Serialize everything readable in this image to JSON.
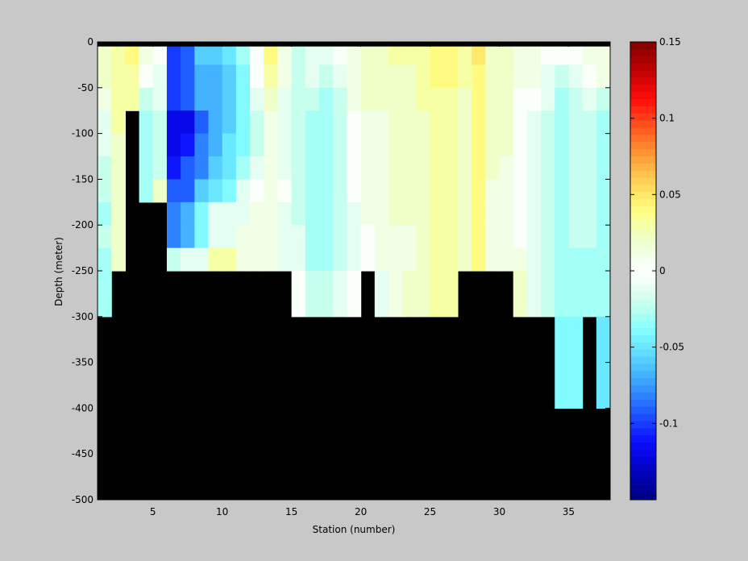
{
  "window": {
    "background": "#c8c8c8"
  },
  "chart_data": {
    "type": "heatmap",
    "title": "",
    "xlabel": "Station (number)",
    "ylabel": "Depth (meter)",
    "xlim": [
      1,
      38
    ],
    "ylim": [
      -500,
      0
    ],
    "xticks": [
      5,
      10,
      15,
      20,
      25,
      30,
      35
    ],
    "yticks": [
      0,
      -50,
      -100,
      -150,
      -200,
      -250,
      -300,
      -350,
      -400,
      -450,
      -500
    ],
    "station_edges": [
      1,
      2,
      3,
      4,
      5,
      6,
      7,
      8,
      9,
      10,
      11,
      12,
      13,
      14,
      15,
      16,
      17,
      18,
      19,
      20,
      21,
      22,
      23,
      24,
      25,
      26,
      27,
      28,
      29,
      30,
      31,
      32,
      33,
      34,
      35,
      36,
      37,
      38
    ],
    "depth_edges": [
      0,
      -5,
      -25,
      -50,
      -75,
      -100,
      -125,
      -150,
      -175,
      -200,
      -225,
      -250,
      -300,
      -400,
      -500
    ],
    "land_color": "#000000",
    "colorbar": {
      "range": [
        -0.15,
        0.15
      ],
      "ticks": [
        0.15,
        0.1,
        0.05,
        0,
        -0.05,
        -0.1
      ],
      "tick_labels": [
        "0.15",
        "0.1",
        "0.05",
        "0",
        "-0.05",
        "-0.1"
      ],
      "levels": 64
    },
    "columns": [
      [
        null,
        0.02,
        0.02,
        0.01,
        -0.01,
        -0.01,
        -0.02,
        -0.02,
        -0.03,
        -0.02,
        -0.03,
        -0.03,
        null,
        null
      ],
      [
        null,
        0.03,
        0.03,
        0.03,
        0.03,
        0.02,
        0.02,
        0.02,
        0.02,
        0.02,
        0.02,
        null,
        null,
        null
      ],
      [
        null,
        0.04,
        0.03,
        0.03,
        null,
        null,
        null,
        null,
        null,
        null,
        null,
        null,
        null,
        null
      ],
      [
        null,
        0.01,
        0.0,
        -0.02,
        -0.03,
        -0.03,
        -0.03,
        -0.03,
        null,
        null,
        null,
        null,
        null,
        null
      ],
      [
        null,
        0.0,
        -0.01,
        -0.01,
        -0.02,
        -0.02,
        -0.02,
        0.02,
        null,
        null,
        null,
        null,
        null,
        null
      ],
      [
        null,
        -0.1,
        -0.1,
        -0.1,
        -0.12,
        -0.12,
        -0.11,
        -0.09,
        -0.08,
        -0.08,
        -0.02,
        null,
        null,
        null
      ],
      [
        null,
        -0.09,
        -0.09,
        -0.09,
        -0.12,
        -0.11,
        -0.09,
        -0.09,
        -0.07,
        -0.07,
        -0.01,
        null,
        null,
        null
      ],
      [
        null,
        -0.06,
        -0.07,
        -0.07,
        -0.09,
        -0.08,
        -0.08,
        -0.06,
        -0.04,
        -0.04,
        -0.01,
        null,
        null,
        null
      ],
      [
        null,
        -0.06,
        -0.07,
        -0.07,
        -0.07,
        -0.07,
        -0.06,
        -0.05,
        -0.01,
        -0.01,
        0.03,
        null,
        null,
        null
      ],
      [
        null,
        -0.05,
        -0.06,
        -0.06,
        -0.06,
        -0.05,
        -0.05,
        -0.04,
        -0.01,
        -0.01,
        0.03,
        null,
        null,
        null
      ],
      [
        null,
        -0.03,
        -0.04,
        -0.04,
        -0.04,
        -0.04,
        -0.03,
        -0.01,
        -0.01,
        0.01,
        0.01,
        null,
        null,
        null
      ],
      [
        null,
        0.0,
        0.0,
        -0.01,
        -0.02,
        -0.02,
        -0.01,
        0.0,
        0.01,
        0.01,
        0.01,
        null,
        null,
        null
      ],
      [
        null,
        0.04,
        0.03,
        0.02,
        0.01,
        0.01,
        0.01,
        0.01,
        0.01,
        0.01,
        0.01,
        null,
        null,
        null
      ],
      [
        null,
        0.01,
        0.01,
        -0.01,
        -0.01,
        -0.01,
        -0.01,
        0.0,
        -0.01,
        -0.01,
        -0.01,
        null,
        null,
        null
      ],
      [
        null,
        -0.02,
        -0.02,
        -0.02,
        -0.02,
        -0.02,
        -0.02,
        -0.02,
        -0.02,
        -0.01,
        -0.01,
        0.0,
        null,
        null
      ],
      [
        null,
        -0.01,
        -0.01,
        -0.02,
        -0.03,
        -0.03,
        -0.03,
        -0.03,
        -0.03,
        -0.03,
        -0.03,
        -0.02,
        null,
        null
      ],
      [
        null,
        -0.01,
        -0.02,
        -0.03,
        -0.03,
        -0.03,
        -0.03,
        -0.03,
        -0.03,
        -0.03,
        -0.03,
        -0.02,
        null,
        null
      ],
      [
        null,
        0.0,
        -0.01,
        -0.02,
        -0.02,
        -0.02,
        -0.02,
        -0.02,
        -0.02,
        -0.02,
        -0.02,
        -0.01,
        null,
        null
      ],
      [
        null,
        0.01,
        0.01,
        0.01,
        0.0,
        0.0,
        0.0,
        0.0,
        -0.01,
        -0.01,
        -0.01,
        0.0,
        null,
        null
      ],
      [
        null,
        0.02,
        0.02,
        0.02,
        0.01,
        0.01,
        0.01,
        0.01,
        0.01,
        0.0,
        0.0,
        null,
        null,
        null
      ],
      [
        null,
        0.02,
        0.02,
        0.02,
        0.01,
        0.01,
        0.01,
        0.01,
        0.01,
        0.01,
        0.01,
        -0.01,
        null,
        null
      ],
      [
        null,
        0.03,
        0.02,
        0.02,
        0.02,
        0.02,
        0.02,
        0.02,
        0.02,
        0.01,
        0.01,
        0.01,
        null,
        null
      ],
      [
        null,
        0.03,
        0.02,
        0.02,
        0.02,
        0.02,
        0.02,
        0.02,
        0.02,
        0.01,
        0.01,
        0.02,
        null,
        null
      ],
      [
        null,
        0.03,
        0.03,
        0.03,
        0.02,
        0.02,
        0.02,
        0.02,
        0.02,
        0.02,
        0.02,
        0.02,
        null,
        null
      ],
      [
        null,
        0.04,
        0.04,
        0.03,
        0.03,
        0.03,
        0.03,
        0.03,
        0.03,
        0.03,
        0.03,
        0.03,
        null,
        null
      ],
      [
        null,
        0.04,
        0.04,
        0.03,
        0.03,
        0.03,
        0.03,
        0.03,
        0.03,
        0.03,
        0.03,
        0.03,
        null,
        null
      ],
      [
        null,
        0.03,
        0.03,
        0.02,
        0.02,
        0.02,
        0.02,
        0.02,
        0.02,
        0.02,
        0.02,
        null,
        null,
        null
      ],
      [
        null,
        0.05,
        0.04,
        0.04,
        0.04,
        0.04,
        0.04,
        0.04,
        0.04,
        0.04,
        0.04,
        null,
        null,
        null
      ],
      [
        null,
        0.02,
        0.02,
        0.02,
        0.02,
        0.02,
        0.02,
        0.01,
        0.01,
        0.01,
        0.01,
        null,
        null,
        null
      ],
      [
        null,
        0.02,
        0.02,
        0.02,
        0.02,
        0.02,
        0.01,
        0.01,
        0.01,
        0.01,
        0.01,
        null,
        null,
        null
      ],
      [
        null,
        0.01,
        0.01,
        0.0,
        0.0,
        0.0,
        0.0,
        0.0,
        0.0,
        0.0,
        0.01,
        0.02,
        null,
        null
      ],
      [
        null,
        0.01,
        0.01,
        0.0,
        -0.01,
        -0.01,
        -0.01,
        -0.01,
        -0.01,
        -0.01,
        -0.01,
        -0.01,
        null,
        null
      ],
      [
        null,
        0.0,
        -0.01,
        -0.01,
        -0.02,
        -0.02,
        -0.02,
        -0.02,
        -0.02,
        -0.02,
        -0.02,
        -0.02,
        null,
        null
      ],
      [
        null,
        0.0,
        -0.02,
        -0.03,
        -0.03,
        -0.03,
        -0.03,
        -0.03,
        -0.03,
        -0.03,
        -0.03,
        -0.03,
        -0.04,
        null
      ],
      [
        null,
        0.0,
        -0.01,
        -0.02,
        -0.02,
        -0.02,
        -0.02,
        -0.02,
        -0.02,
        -0.02,
        -0.03,
        -0.03,
        -0.04,
        null
      ],
      [
        null,
        0.01,
        0.0,
        -0.01,
        -0.02,
        -0.02,
        -0.02,
        -0.02,
        -0.02,
        -0.02,
        -0.03,
        -0.03,
        null,
        null
      ],
      [
        null,
        0.01,
        0.01,
        -0.02,
        -0.03,
        -0.03,
        -0.03,
        -0.03,
        -0.03,
        -0.03,
        -0.03,
        -0.03,
        -0.05,
        null
      ]
    ]
  }
}
